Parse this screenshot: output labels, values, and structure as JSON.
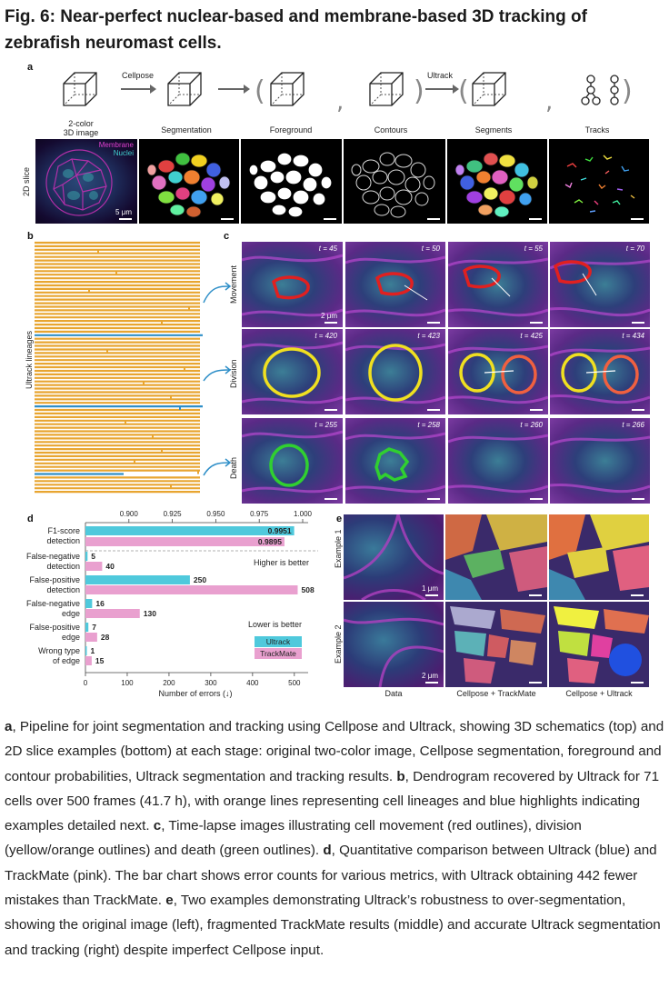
{
  "figure": {
    "title": "Fig. 6: Near-perfect nuclear-based and membrane-based 3D tracking of zebrafish neuromast cells."
  },
  "panel_a": {
    "label": "a",
    "arrow_labels": [
      "Cellpose",
      "Ultrack"
    ],
    "stages": [
      "2-color\n3D image",
      "Segmentation",
      "Foreground",
      "Contours",
      "Segments",
      "Tracks"
    ],
    "slice_label": "2D slice",
    "legend": [
      "Membrane",
      "Nuclei"
    ],
    "scale": "5 μm"
  },
  "panel_b": {
    "label": "b",
    "axis_label": "Ultrack lineages",
    "colors": {
      "lineage": "#e8a530",
      "highlight": "#2f8fc8"
    }
  },
  "panel_c": {
    "label": "c",
    "rows": [
      {
        "name": "Movement",
        "times": [
          "t = 45",
          "t = 50",
          "t = 55",
          "t = 70"
        ],
        "outline": "#e02020"
      },
      {
        "name": "Division",
        "times": [
          "t = 420",
          "t = 423",
          "t = 425",
          "t = 434"
        ],
        "outline": "#f0e020"
      },
      {
        "name": "Death",
        "times": [
          "t = 255",
          "t = 258",
          "t = 260",
          "t = 266"
        ],
        "outline": "#30d030"
      }
    ],
    "scale": "2 μm"
  },
  "panel_d": {
    "label": "d",
    "higher_note": "Higher is better",
    "lower_note": "Lower is better",
    "legend": {
      "ultrack": "Ultrack",
      "trackmate": "TrackMate"
    },
    "colors": {
      "ultrack": "#4fc9dc",
      "trackmate": "#e9a0cf"
    }
  },
  "panel_e": {
    "label": "e",
    "rows": [
      "Example 1",
      "Example 2"
    ],
    "columns": [
      "Data",
      "Cellpose + TrackMate",
      "Cellpose + Ultrack"
    ],
    "scales": [
      "1 μm",
      "2 μm"
    ]
  },
  "chart_data": {
    "type": "bar",
    "orientation": "horizontal",
    "top_axis": {
      "ticks": [
        "0.900",
        "0.925",
        "0.950",
        "0.975",
        "1.000"
      ],
      "range": [
        0.875,
        1.0
      ],
      "categories": [
        "F1-score\ndetection"
      ],
      "series": [
        {
          "name": "Ultrack",
          "values": [
            0.9951
          ]
        },
        {
          "name": "TrackMate",
          "values": [
            0.9895
          ]
        }
      ]
    },
    "bottom_axis": {
      "xlabel": "Number of errors (↓)",
      "ticks": [
        "0",
        "100",
        "200",
        "300",
        "400",
        "500"
      ],
      "range": [
        0,
        520
      ],
      "categories": [
        "False-negative\ndetection",
        "False-positive\ndetection",
        "False-negative\nedge",
        "False-positive\nedge",
        "Wrong type\nof edge"
      ],
      "series": [
        {
          "name": "Ultrack",
          "values": [
            5,
            250,
            16,
            7,
            1
          ]
        },
        {
          "name": "TrackMate",
          "values": [
            40,
            508,
            130,
            28,
            15
          ]
        }
      ]
    }
  },
  "caption": {
    "parts": [
      {
        "b": "a",
        "t": ", Pipeline for joint segmentation and tracking using Cellpose and Ultrack, showing 3D schematics (top) and 2D slice examples (bottom) at each stage: original two-color image, Cellpose segmentation, foreground and contour probabilities, Ultrack segmentation and tracking results. "
      },
      {
        "b": "b",
        "t": ", Dendrogram recovered by Ultrack for 71 cells over 500 frames (41.7 h), with orange lines representing cell lineages and blue highlights indicating examples detailed next. "
      },
      {
        "b": "c",
        "t": ", Time-lapse images illustrating cell movement (red outlines), division (yellow/orange outlines) and death (green outlines). "
      },
      {
        "b": "d",
        "t": ", Quantitative comparison between Ultrack (blue) and TrackMate (pink). The bar chart shows error counts for various metrics, with Ultrack obtaining 442 fewer mistakes than TrackMate. "
      },
      {
        "b": "e",
        "t": ", Two examples demonstrating Ultrack’s robustness to over-segmentation, showing the original image (left), fragmented TrackMate results (middle) and accurate Ultrack segmentation and tracking (right) despite imperfect Cellpose input."
      }
    ]
  }
}
